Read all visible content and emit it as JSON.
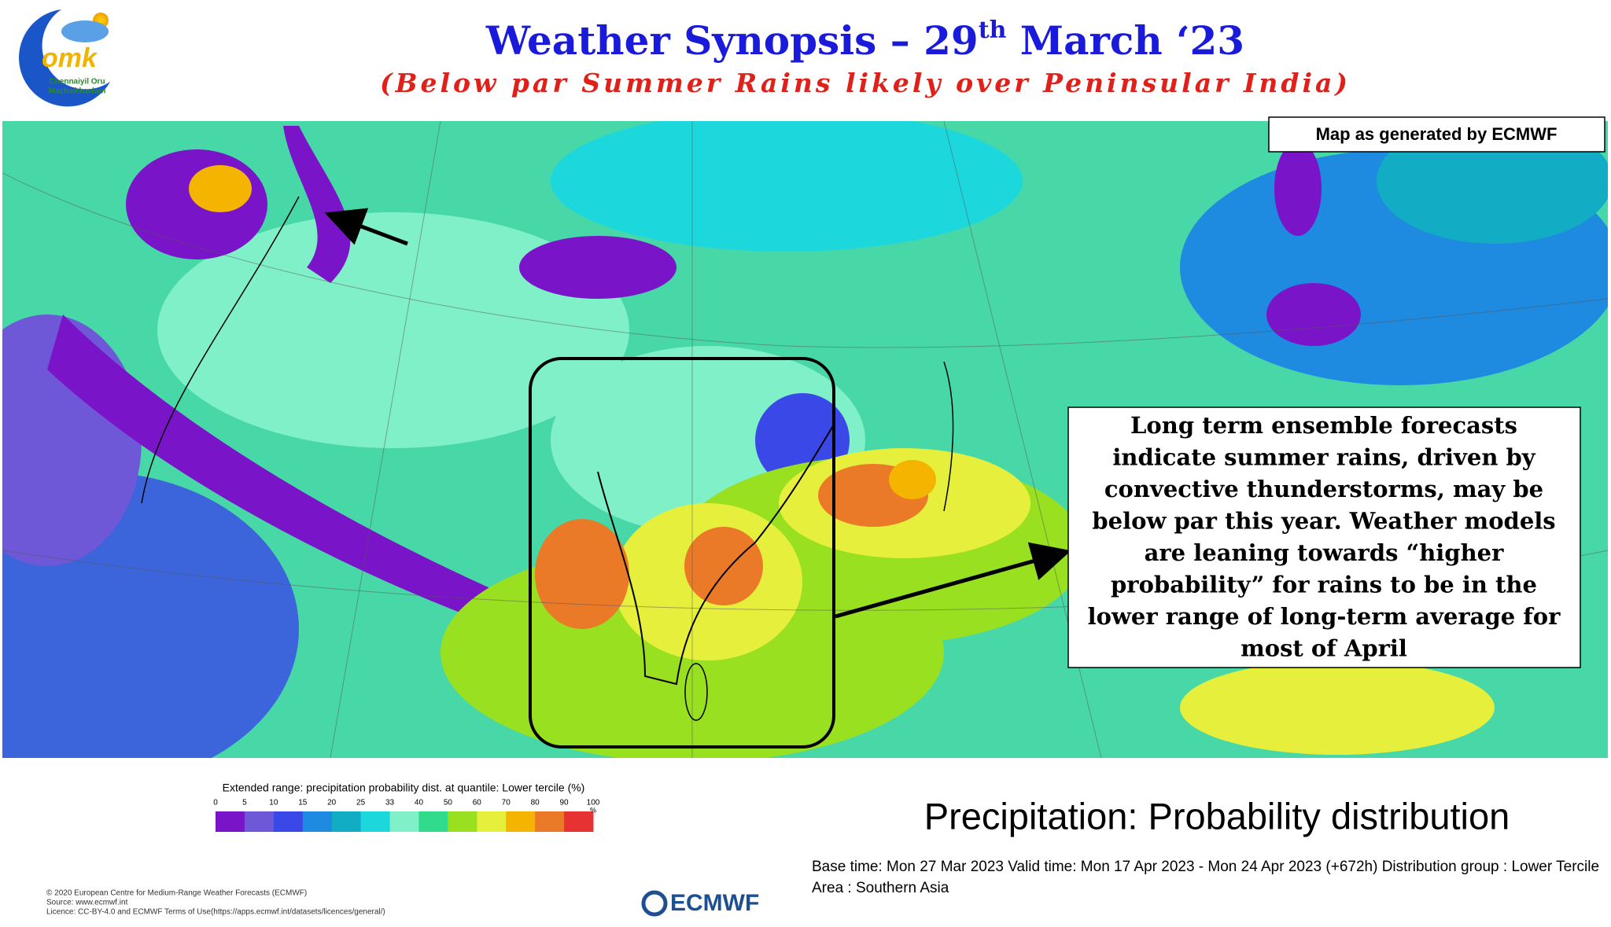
{
  "logo": {
    "mark": "omk",
    "line1": "Chennaiyil Oru",
    "line2": "Mazhaikkaalam"
  },
  "header": {
    "title_parts": [
      "Weather Synopsis – 29",
      "th",
      " March ‘23"
    ],
    "subtitle": "(Below par Summer Rains likely over Peninsular India)"
  },
  "map": {
    "note": "Map as generated by ECMWF",
    "callout_lines": [
      "Long term ensemble forecasts",
      "indicate summer rains, driven by",
      "convective thunderstorms, may be",
      "below par this year. Weather models",
      "are leaning towards “higher",
      "probability” for rains to be in the",
      "lower range of long-term average for",
      "most of April"
    ]
  },
  "legend": {
    "title": "Extended range: precipitation probability dist. at quantile: Lower tercile (%)",
    "ticks": [
      0,
      5,
      10,
      15,
      20,
      25,
      33,
      40,
      50,
      60,
      70,
      80,
      90,
      100
    ],
    "unit": "%",
    "colors": [
      "#7a14c8",
      "#6f58d8",
      "#3a48e8",
      "#1e8ae0",
      "#12adc4",
      "#1cd8dc",
      "#80f0c8",
      "#30dc8c",
      "#98e020",
      "#e6f03c",
      "#f5b400",
      "#ea7a28",
      "#e63232"
    ]
  },
  "footer": {
    "heading": "Precipitation: Probability distribution",
    "base_time": "Base time: Mon 27 Mar 2023 Valid time: Mon 17 Apr 2023 - Mon 24 Apr 2023 (+672h) Distribution group : Lower Tercile",
    "area": "Area : Southern Asia",
    "copyright": [
      "© 2020 European Centre for Medium-Range Weather Forecasts (ECMWF)",
      "Source: www.ecmwf.int",
      "Licence: CC-BY-4.0 and ECMWF Terms of Use(https://apps.ecmwf.int/datasets/licences/general/)"
    ],
    "brand": "ECMWF"
  }
}
